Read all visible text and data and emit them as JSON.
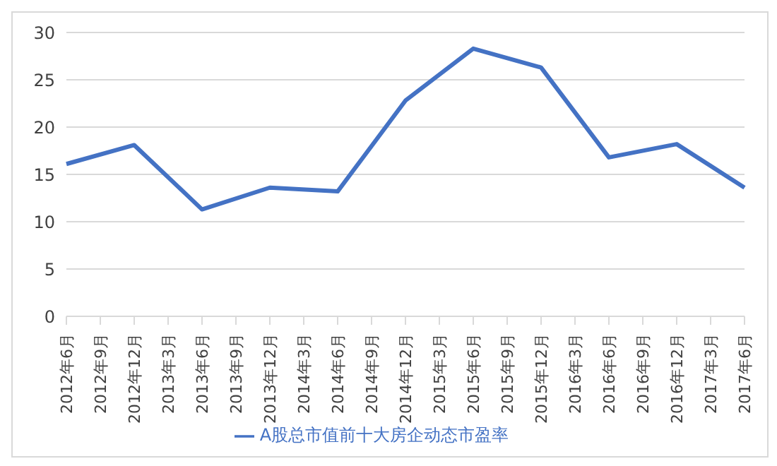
{
  "chart_data": {
    "type": "line",
    "categories": [
      "2012年6月",
      "2012年9月",
      "2012年12月",
      "2013年3月",
      "2013年6月",
      "2013年9月",
      "2013年12月",
      "2014年3月",
      "2014年6月",
      "2014年9月",
      "2014年12月",
      "2015年3月",
      "2015年6月",
      "2015年9月",
      "2015年12月",
      "2016年3月",
      "2016年6月",
      "2016年9月",
      "2016年12月",
      "2017年3月",
      "2017年6月"
    ],
    "series": [
      {
        "name": "A股总市值前十大房企动态市盈率",
        "color": "#4472c4",
        "values": [
          16.1,
          null,
          18.1,
          null,
          11.3,
          null,
          13.6,
          null,
          13.2,
          null,
          22.8,
          null,
          28.3,
          null,
          26.3,
          null,
          16.8,
          null,
          18.2,
          null,
          13.6
        ]
      }
    ],
    "ylim": [
      0,
      30
    ],
    "yticks": [
      0,
      5,
      10,
      15,
      20,
      25,
      30
    ],
    "grid": "y",
    "legend": "bottom",
    "marker": "none",
    "line_style": "solid"
  }
}
